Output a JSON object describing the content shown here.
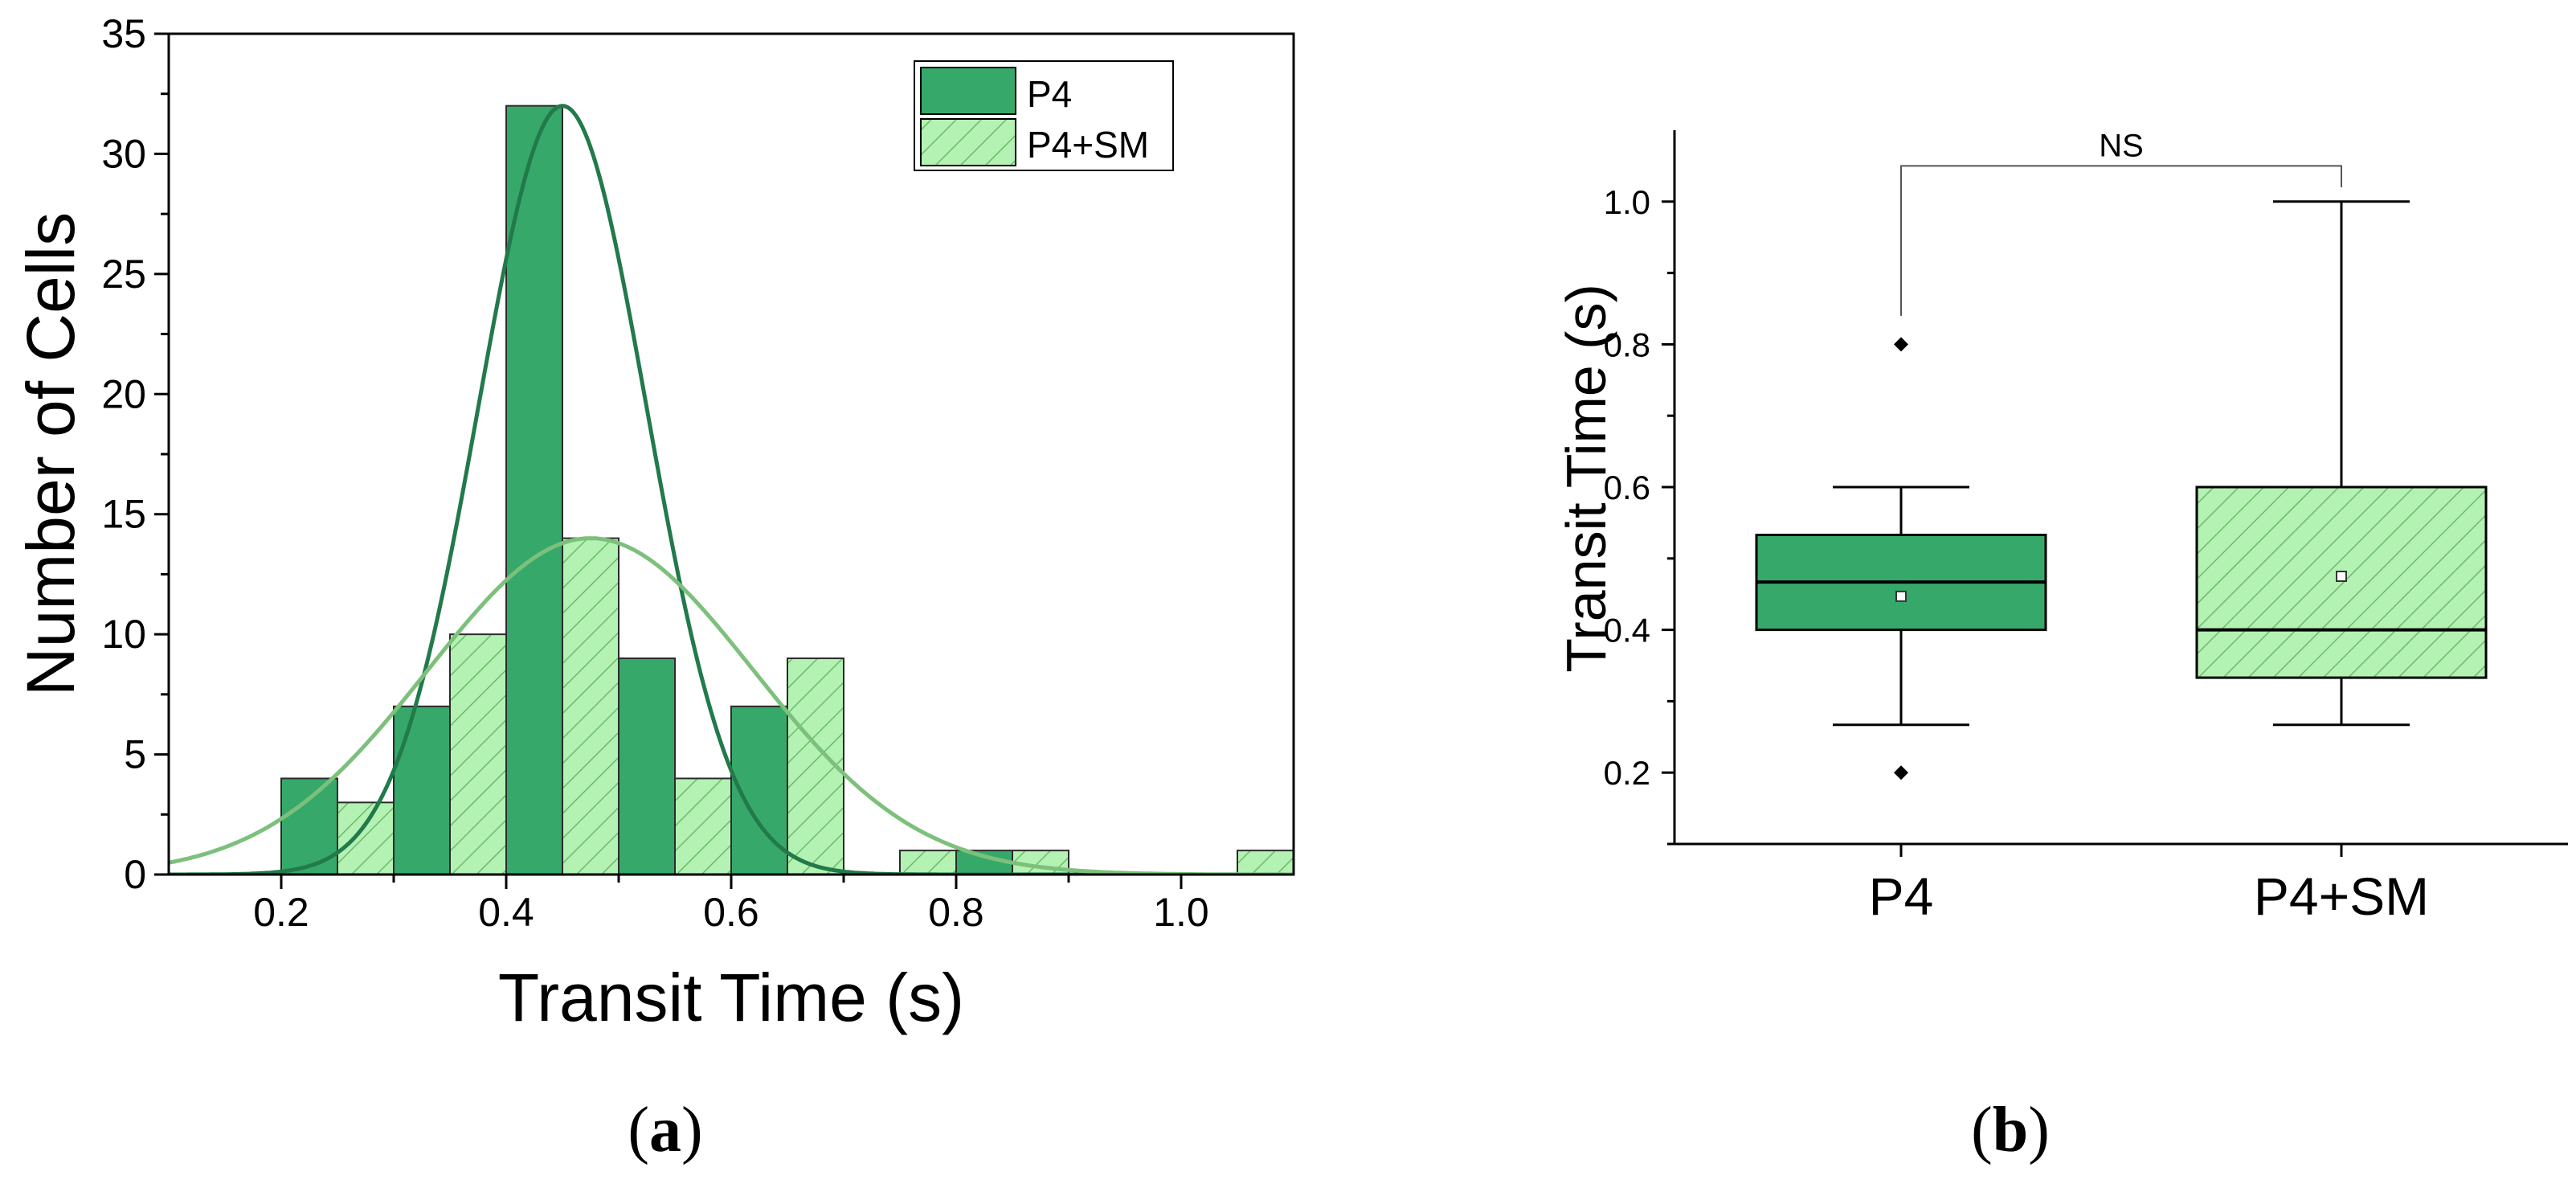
{
  "chart_data": [
    {
      "type": "bar",
      "subtype": "histogram",
      "panel_label_open": "(",
      "panel_label_letter": "a",
      "panel_label_close": ")",
      "xlabel": "Transit Time (s)",
      "ylabel": "Number of Cells",
      "xlim": [
        0.1,
        1.1
      ],
      "ylim": [
        0,
        35
      ],
      "x_ticks": [
        "0.2",
        "0.4",
        "0.6",
        "0.8",
        "1.0"
      ],
      "x_tick_values": [
        0.2,
        0.4,
        0.6,
        0.8,
        1.0
      ],
      "y_ticks": [
        "0",
        "5",
        "10",
        "15",
        "20",
        "25",
        "30",
        "35"
      ],
      "y_tick_values": [
        0,
        5,
        10,
        15,
        20,
        25,
        30,
        35
      ],
      "legend_position": "top-right",
      "series": [
        {
          "name": "P4",
          "color": "#36a96a",
          "hatch": false,
          "bins": [
            {
              "start": 0.2,
              "end": 0.25,
              "count": 4
            },
            {
              "start": 0.3,
              "end": 0.35,
              "count": 7
            },
            {
              "start": 0.4,
              "end": 0.45,
              "count": 32
            },
            {
              "start": 0.5,
              "end": 0.55,
              "count": 9
            },
            {
              "start": 0.6,
              "end": 0.65,
              "count": 7
            },
            {
              "start": 0.8,
              "end": 0.85,
              "count": 1
            }
          ],
          "fit": {
            "type": "normal",
            "mean": 0.45,
            "sd": 0.075,
            "peak": 32,
            "color": "#227a4a"
          }
        },
        {
          "name": "P4+SM",
          "color": "#b3f2b3",
          "hatch": true,
          "bins": [
            {
              "start": 0.25,
              "end": 0.3,
              "count": 3
            },
            {
              "start": 0.35,
              "end": 0.4,
              "count": 10
            },
            {
              "start": 0.45,
              "end": 0.5,
              "count": 14
            },
            {
              "start": 0.55,
              "end": 0.6,
              "count": 4
            },
            {
              "start": 0.65,
              "end": 0.7,
              "count": 9
            },
            {
              "start": 0.75,
              "end": 0.8,
              "count": 1
            },
            {
              "start": 0.85,
              "end": 0.9,
              "count": 1
            },
            {
              "start": 1.05,
              "end": 1.1,
              "count": 1
            }
          ],
          "fit": {
            "type": "normal",
            "mean": 0.475,
            "sd": 0.145,
            "peak": 14,
            "color": "#7cc07c"
          }
        }
      ]
    },
    {
      "type": "box",
      "panel_label_open": "(",
      "panel_label_letter": "b",
      "panel_label_close": ")",
      "ylabel": "Transit Time (s)",
      "ylim": [
        0.1,
        1.1
      ],
      "y_ticks": [
        "0.2",
        "0.4",
        "0.6",
        "0.8",
        "1.0"
      ],
      "y_tick_values": [
        0.2,
        0.4,
        0.6,
        0.8,
        1.0
      ],
      "categories": [
        "P4",
        "P4+SM"
      ],
      "boxes": [
        {
          "name": "P4",
          "color": "#36a96a",
          "hatch": false,
          "whisker_low": 0.267,
          "q1": 0.4,
          "median": 0.467,
          "mean": 0.447,
          "q3": 0.533,
          "whisker_high": 0.6,
          "outliers": [
            0.8,
            0.2
          ]
        },
        {
          "name": "P4+SM",
          "color": "#b3f2b3",
          "hatch": true,
          "whisker_low": 0.267,
          "q1": 0.333,
          "median": 0.4,
          "mean": 0.475,
          "q3": 0.6,
          "whisker_high": 1.0,
          "outliers": []
        }
      ],
      "significance": {
        "label": "NS",
        "bracket_y": 1.05,
        "left_drop_to": 0.84,
        "right_drop_to": 1.02
      }
    }
  ]
}
